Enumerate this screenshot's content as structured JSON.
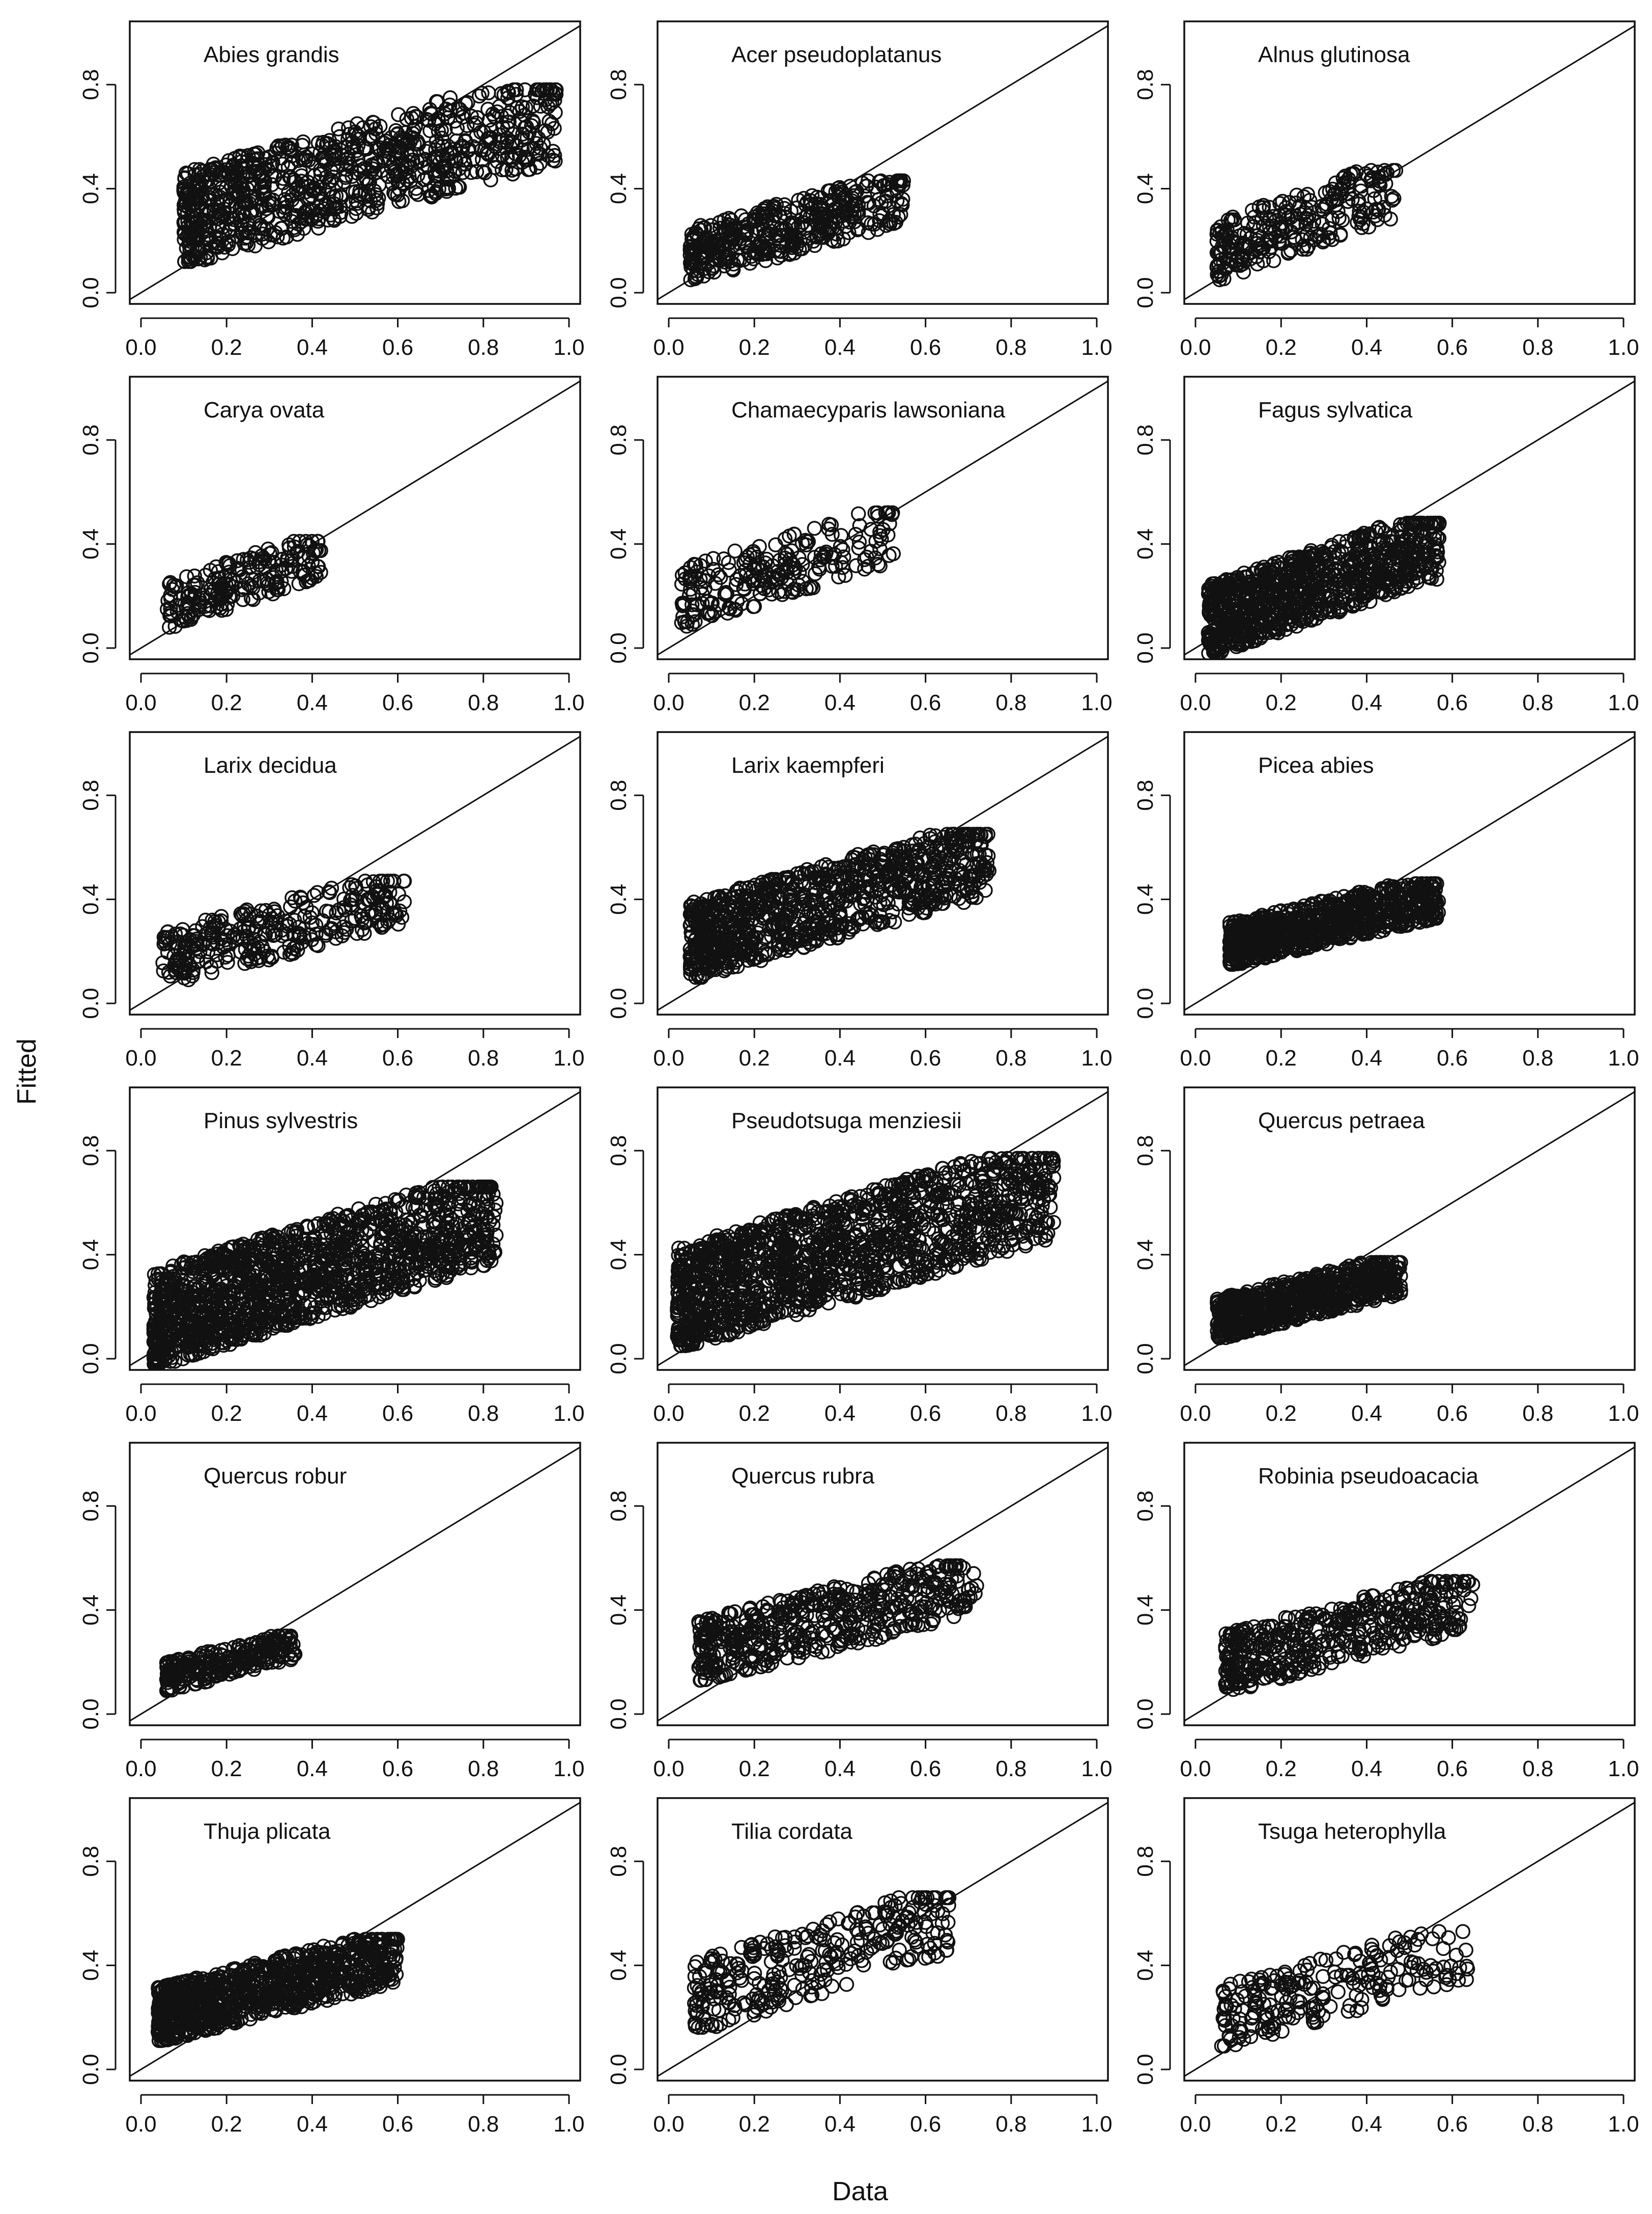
{
  "figure": {
    "xlabel": "Data",
    "ylabel": "Fitted"
  },
  "chart_data": [
    {
      "type": "scatter",
      "title": "Abies grandis",
      "xlim": [
        0,
        1
      ],
      "ylim": [
        0,
        1
      ],
      "xticks": [
        "0.0",
        "0.2",
        "0.4",
        "0.6",
        "0.8",
        "1.0"
      ],
      "yticks": [
        "0.0",
        "0.4",
        "0.8"
      ],
      "reference_line": "y = x",
      "marker": "open circle",
      "cloud": {
        "x": [
          0.1,
          0.97
        ],
        "y": [
          0.12,
          0.78
        ],
        "n": 900
      }
    },
    {
      "type": "scatter",
      "title": "Acer pseudoplatanus",
      "xlim": [
        0,
        1
      ],
      "ylim": [
        0,
        1
      ],
      "xticks": [
        "0.0",
        "0.2",
        "0.4",
        "0.6",
        "0.8",
        "1.0"
      ],
      "yticks": [
        "0.0",
        "0.4",
        "0.8"
      ],
      "reference_line": "y = x",
      "marker": "open circle",
      "cloud": {
        "x": [
          0.05,
          0.55
        ],
        "y": [
          0.05,
          0.43
        ],
        "n": 400
      }
    },
    {
      "type": "scatter",
      "title": "Alnus glutinosa",
      "xlim": [
        0,
        1
      ],
      "ylim": [
        0,
        1
      ],
      "xticks": [
        "0.0",
        "0.2",
        "0.4",
        "0.6",
        "0.8",
        "1.0"
      ],
      "yticks": [
        "0.0",
        "0.4",
        "0.8"
      ],
      "reference_line": "y = x",
      "marker": "open circle",
      "cloud": {
        "x": [
          0.05,
          0.47
        ],
        "y": [
          0.05,
          0.47
        ],
        "n": 260
      }
    },
    {
      "type": "scatter",
      "title": "Carya ovata",
      "xlim": [
        0,
        1
      ],
      "ylim": [
        0,
        1
      ],
      "xticks": [
        "0.0",
        "0.2",
        "0.4",
        "0.6",
        "0.8",
        "1.0"
      ],
      "yticks": [
        "0.0",
        "0.4",
        "0.8"
      ],
      "reference_line": "y = x",
      "marker": "open circle",
      "cloud": {
        "x": [
          0.06,
          0.42
        ],
        "y": [
          0.08,
          0.41
        ],
        "n": 200
      }
    },
    {
      "type": "scatter",
      "title": "Chamaecyparis lawsoniana",
      "xlim": [
        0,
        1
      ],
      "ylim": [
        0,
        1
      ],
      "xticks": [
        "0.0",
        "0.2",
        "0.4",
        "0.6",
        "0.8",
        "1.0"
      ],
      "yticks": [
        "0.0",
        "0.4",
        "0.8"
      ],
      "reference_line": "y = x",
      "marker": "open circle",
      "cloud": {
        "x": [
          0.03,
          0.53
        ],
        "y": [
          0.08,
          0.52
        ],
        "n": 220
      }
    },
    {
      "type": "scatter",
      "title": "Fagus sylvatica",
      "xlim": [
        0,
        1
      ],
      "ylim": [
        0,
        1
      ],
      "xticks": [
        "0.0",
        "0.2",
        "0.4",
        "0.6",
        "0.8",
        "1.0"
      ],
      "yticks": [
        "0.0",
        "0.4",
        "0.8"
      ],
      "reference_line": "y = x",
      "marker": "open circle",
      "cloud": {
        "x": [
          0.03,
          0.57
        ],
        "y": [
          -0.02,
          0.48
        ],
        "n": 900
      }
    },
    {
      "type": "scatter",
      "title": "Larix decidua",
      "xlim": [
        0,
        1
      ],
      "ylim": [
        0,
        1
      ],
      "xticks": [
        "0.0",
        "0.2",
        "0.4",
        "0.6",
        "0.8",
        "1.0"
      ],
      "yticks": [
        "0.0",
        "0.4",
        "0.8"
      ],
      "reference_line": "y = x",
      "marker": "open circle",
      "cloud": {
        "x": [
          0.05,
          0.62
        ],
        "y": [
          0.07,
          0.47
        ],
        "n": 300
      }
    },
    {
      "type": "scatter",
      "title": "Larix kaempferi",
      "xlim": [
        0,
        1
      ],
      "ylim": [
        0,
        1
      ],
      "xticks": [
        "0.0",
        "0.2",
        "0.4",
        "0.6",
        "0.8",
        "1.0"
      ],
      "yticks": [
        "0.0",
        "0.4",
        "0.8"
      ],
      "reference_line": "y = x",
      "marker": "open circle",
      "cloud": {
        "x": [
          0.05,
          0.75
        ],
        "y": [
          0.1,
          0.65
        ],
        "n": 900
      }
    },
    {
      "type": "scatter",
      "title": "Picea abies",
      "xlim": [
        0,
        1
      ],
      "ylim": [
        0,
        1
      ],
      "xticks": [
        "0.0",
        "0.2",
        "0.4",
        "0.6",
        "0.8",
        "1.0"
      ],
      "yticks": [
        "0.0",
        "0.4",
        "0.8"
      ],
      "reference_line": "y = x",
      "marker": "open circle",
      "cloud": {
        "x": [
          0.08,
          0.57
        ],
        "y": [
          0.15,
          0.46
        ],
        "n": 800
      }
    },
    {
      "type": "scatter",
      "title": "Pinus sylvestris",
      "xlim": [
        0,
        1
      ],
      "ylim": [
        0,
        1
      ],
      "xticks": [
        "0.0",
        "0.2",
        "0.4",
        "0.6",
        "0.8",
        "1.0"
      ],
      "yticks": [
        "0.0",
        "0.4",
        "0.8"
      ],
      "reference_line": "y = x",
      "marker": "open circle",
      "cloud": {
        "x": [
          0.03,
          0.83
        ],
        "y": [
          -0.02,
          0.66
        ],
        "n": 1400
      }
    },
    {
      "type": "scatter",
      "title": "Pseudotsuga menziesii",
      "xlim": [
        0,
        1
      ],
      "ylim": [
        0,
        1
      ],
      "xticks": [
        "0.0",
        "0.2",
        "0.4",
        "0.6",
        "0.8",
        "1.0"
      ],
      "yticks": [
        "0.0",
        "0.4",
        "0.8"
      ],
      "reference_line": "y = x",
      "marker": "open circle",
      "cloud": {
        "x": [
          0.02,
          0.9
        ],
        "y": [
          0.05,
          0.77
        ],
        "n": 1400
      }
    },
    {
      "type": "scatter",
      "title": "Quercus petraea",
      "xlim": [
        0,
        1
      ],
      "ylim": [
        0,
        1
      ],
      "xticks": [
        "0.0",
        "0.2",
        "0.4",
        "0.6",
        "0.8",
        "1.0"
      ],
      "yticks": [
        "0.0",
        "0.4",
        "0.8"
      ],
      "reference_line": "y = x",
      "marker": "open circle",
      "cloud": {
        "x": [
          0.05,
          0.48
        ],
        "y": [
          0.08,
          0.37
        ],
        "n": 700
      }
    },
    {
      "type": "scatter",
      "title": "Quercus robur",
      "xlim": [
        0,
        1
      ],
      "ylim": [
        0,
        1
      ],
      "xticks": [
        "0.0",
        "0.2",
        "0.4",
        "0.6",
        "0.8",
        "1.0"
      ],
      "yticks": [
        "0.0",
        "0.4",
        "0.8"
      ],
      "reference_line": "y = x",
      "marker": "open circle",
      "cloud": {
        "x": [
          0.06,
          0.36
        ],
        "y": [
          0.09,
          0.3
        ],
        "n": 250
      }
    },
    {
      "type": "scatter",
      "title": "Quercus rubra",
      "xlim": [
        0,
        1
      ],
      "ylim": [
        0,
        1
      ],
      "xticks": [
        "0.0",
        "0.2",
        "0.4",
        "0.6",
        "0.8",
        "1.0"
      ],
      "yticks": [
        "0.0",
        "0.4",
        "0.8"
      ],
      "reference_line": "y = x",
      "marker": "open circle",
      "cloud": {
        "x": [
          0.07,
          0.72
        ],
        "y": [
          0.13,
          0.57
        ],
        "n": 500
      }
    },
    {
      "type": "scatter",
      "title": "Robinia pseudoacacia",
      "xlim": [
        0,
        1
      ],
      "ylim": [
        0,
        1
      ],
      "xticks": [
        "0.0",
        "0.2",
        "0.4",
        "0.6",
        "0.8",
        "1.0"
      ],
      "yticks": [
        "0.0",
        "0.4",
        "0.8"
      ],
      "reference_line": "y = x",
      "marker": "open circle",
      "cloud": {
        "x": [
          0.07,
          0.65
        ],
        "y": [
          0.09,
          0.51
        ],
        "n": 450
      }
    },
    {
      "type": "scatter",
      "title": "Thuja plicata",
      "xlim": [
        0,
        1
      ],
      "ylim": [
        0,
        1
      ],
      "xticks": [
        "0.0",
        "0.2",
        "0.4",
        "0.6",
        "0.8",
        "1.0"
      ],
      "yticks": [
        "0.0",
        "0.4",
        "0.8"
      ],
      "reference_line": "y = x",
      "marker": "open circle",
      "cloud": {
        "x": [
          0.04,
          0.6
        ],
        "y": [
          0.11,
          0.5
        ],
        "n": 900
      }
    },
    {
      "type": "scatter",
      "title": "Tilia cordata",
      "xlim": [
        0,
        1
      ],
      "ylim": [
        0,
        1
      ],
      "xticks": [
        "0.0",
        "0.2",
        "0.4",
        "0.6",
        "0.8",
        "1.0"
      ],
      "yticks": [
        "0.0",
        "0.4",
        "0.8"
      ],
      "reference_line": "y = x",
      "marker": "open circle",
      "cloud": {
        "x": [
          0.06,
          0.66
        ],
        "y": [
          0.15,
          0.66
        ],
        "n": 300
      }
    },
    {
      "type": "scatter",
      "title": "Tsuga heterophylla",
      "xlim": [
        0,
        1
      ],
      "ylim": [
        0,
        1
      ],
      "xticks": [
        "0.0",
        "0.2",
        "0.4",
        "0.6",
        "0.8",
        "1.0"
      ],
      "yticks": [
        "0.0",
        "0.4",
        "0.8"
      ],
      "reference_line": "y = x",
      "marker": "open circle",
      "cloud": {
        "x": [
          0.06,
          0.64
        ],
        "y": [
          0.09,
          0.53
        ],
        "n": 220
      }
    }
  ]
}
